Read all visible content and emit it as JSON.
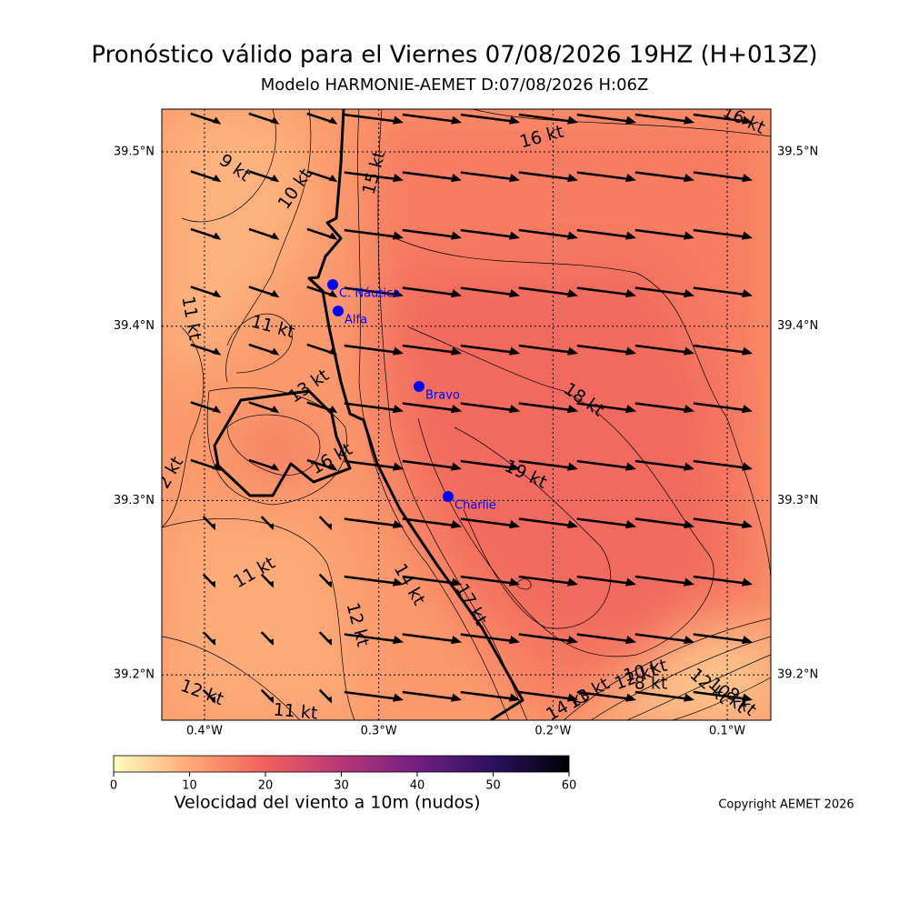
{
  "title": "Pronóstico válido para el Viernes 07/08/2026 19HZ (H+013Z)",
  "subtitle": "Modelo HARMONIE-AEMET D:07/08/2026 H:06Z",
  "map": {
    "xlim": [
      -0.4245,
      -0.075
    ],
    "ylim": [
      39.174,
      39.5245
    ],
    "grid": true,
    "xticks": [
      {
        "value": -0.4,
        "label": "0.4°W"
      },
      {
        "value": -0.3,
        "label": "0.3°W"
      },
      {
        "value": -0.2,
        "label": "0.2°W"
      },
      {
        "value": -0.1,
        "label": "0.1°W"
      }
    ],
    "yticks": [
      {
        "value": 39.5,
        "label": "39.5°N"
      },
      {
        "value": 39.4,
        "label": "39.4°N"
      },
      {
        "value": 39.3,
        "label": "39.3°N"
      },
      {
        "value": 39.2,
        "label": "39.2°N"
      }
    ]
  },
  "stations": [
    {
      "label": "C. Náutico"
    },
    {
      "label": "Alfa"
    },
    {
      "label": "Bravo"
    },
    {
      "label": "Charlie"
    }
  ],
  "contour_labels": [
    "9 kt",
    "10 kt",
    "15 kt",
    "16 kt",
    "16 kt",
    "11 kt",
    "11 kt",
    "13 kt",
    "16 kt",
    "18 kt",
    "19 kt",
    "2 kt",
    "11 kt",
    "14 kt",
    "12 kt",
    "17 kt",
    "12 kt",
    "11 kt",
    "14 kt",
    "13 kt",
    "12 kt",
    "10 kt",
    "8 kt",
    "12 kt",
    "10 kt",
    "8 kt"
  ],
  "colorbar": {
    "label": "Velocidad del viento a 10m (nudos)",
    "lim": [
      0,
      60
    ],
    "ticks": [
      0,
      10,
      20,
      30,
      40,
      50,
      60
    ]
  },
  "copyright": "Copyright AEMET 2026"
}
